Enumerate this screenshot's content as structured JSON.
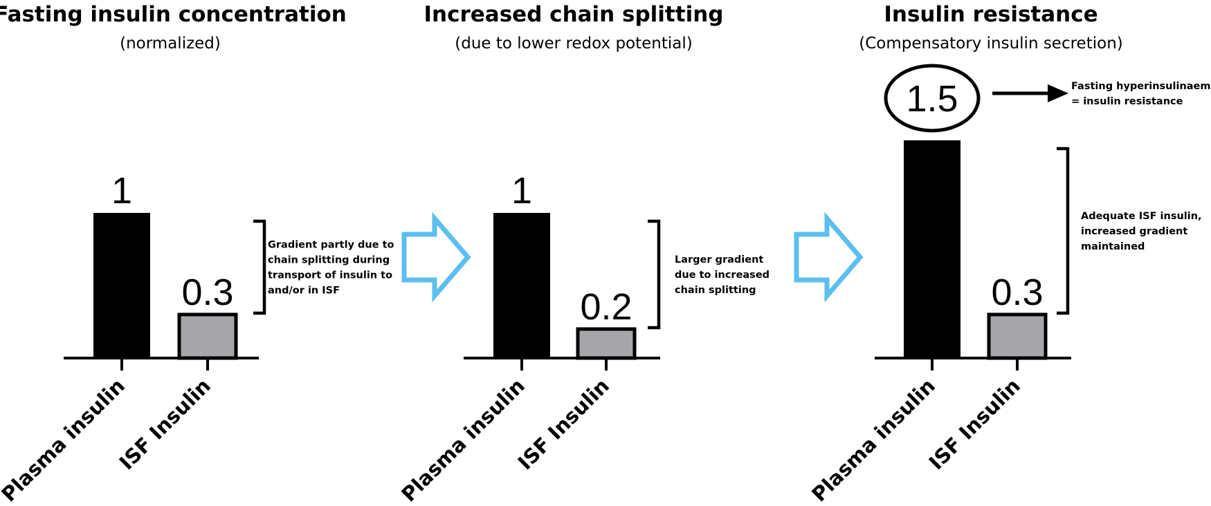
{
  "chart_data": [
    {
      "type": "bar",
      "title": "Fasting insulin concentration",
      "subtitle": "(normalized)",
      "categories": [
        "Plasma insulin",
        "ISF Insulin"
      ],
      "values": [
        1,
        0.3
      ],
      "value_labels": [
        "1",
        "0.3"
      ],
      "bar_colors": [
        "#000000",
        "#a6a5aa"
      ],
      "ylim": [
        0,
        1.6
      ],
      "annotation": [
        "Gradient partly due to",
        "chain splitting during",
        "transport of insulin to",
        "and/or in ISF"
      ]
    },
    {
      "type": "bar",
      "title": "Increased chain splitting",
      "subtitle": "(due to lower redox potential)",
      "categories": [
        "Plasma insulin",
        "ISF Insulin"
      ],
      "values": [
        1,
        0.2
      ],
      "value_labels": [
        "1",
        "0.2"
      ],
      "bar_colors": [
        "#000000",
        "#a6a5aa"
      ],
      "ylim": [
        0,
        1.6
      ],
      "annotation": [
        "Larger gradient",
        "due to increased",
        "chain splitting"
      ]
    },
    {
      "type": "bar",
      "title": "Insulin resistance",
      "subtitle": "(Compensatory insulin secretion)",
      "categories": [
        "Plasma insulin",
        "ISF Insulin"
      ],
      "values": [
        1.5,
        0.3
      ],
      "value_labels": [
        "1.5",
        "0.3"
      ],
      "circled_value_index": 0,
      "bar_colors": [
        "#000000",
        "#a6a5aa"
      ],
      "ylim": [
        0,
        1.6
      ],
      "annotation": [
        "Adequate ISF insulin,",
        "increased gradient",
        "maintained"
      ],
      "callout": [
        "Fasting hyperinsulinaemia",
        "= insulin resistance"
      ]
    }
  ],
  "colors": {
    "transition_arrow": "#5bbfef",
    "bar_primary": "#000000",
    "bar_secondary": "#a6a5aa"
  },
  "icons": [
    "arrow-right-outline-icon",
    "arrow-right-solid-icon"
  ]
}
